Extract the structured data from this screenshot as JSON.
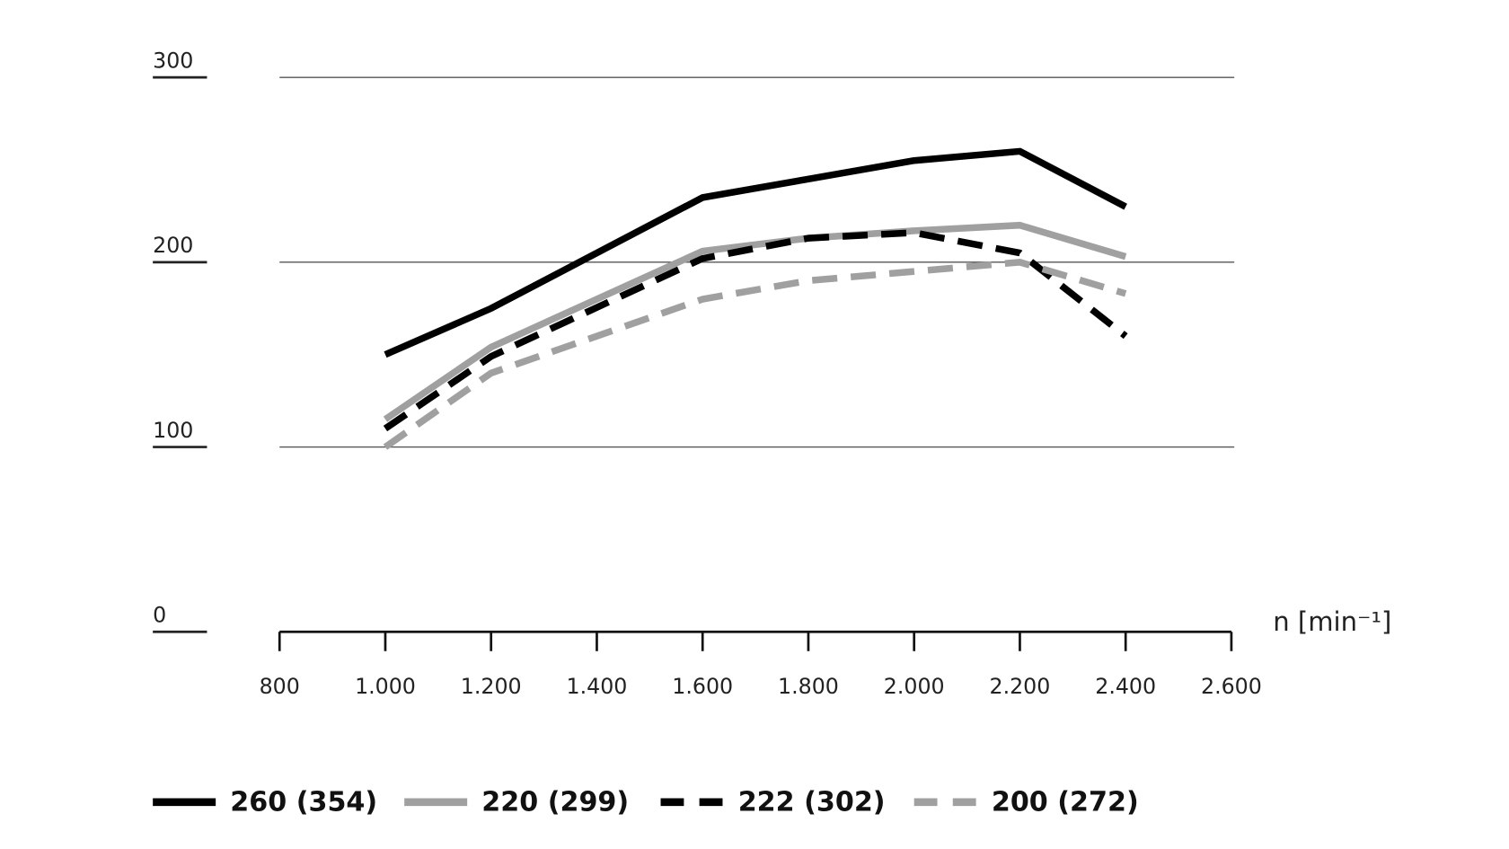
{
  "chart_data": {
    "type": "line",
    "title": "",
    "xlabel": "n [min⁻¹]",
    "ylabel": "",
    "xlim": [
      800,
      2600
    ],
    "ylim": [
      0,
      300
    ],
    "grid": true,
    "legend_position": "bottom",
    "x_tick_labels": [
      "800",
      "1.000",
      "1.200",
      "1.400",
      "1.600",
      "1.800",
      "2.000",
      "2.200",
      "2.400",
      "2.600"
    ],
    "x_ticks": [
      800,
      1000,
      1200,
      1400,
      1600,
      1800,
      2000,
      2200,
      2400,
      2600
    ],
    "y_tick_labels": [
      "0",
      "100",
      "200",
      "300"
    ],
    "y_ticks": [
      0,
      100,
      200,
      300
    ],
    "x": [
      1000,
      1200,
      1600,
      1800,
      2000,
      2200,
      2400
    ],
    "series": [
      {
        "name": "260 (354)",
        "color": "#000000",
        "dashed": false,
        "values": [
          150,
          175,
          235,
          245,
          255,
          260,
          230
        ]
      },
      {
        "name": "220 (299)",
        "color": "#a0a0a0",
        "dashed": false,
        "values": [
          115,
          154,
          206,
          213,
          217,
          220,
          203
        ]
      },
      {
        "name": "222 (302)",
        "color": "#000000",
        "dashed": true,
        "values": [
          110,
          149,
          202,
          213,
          216,
          205,
          160
        ]
      },
      {
        "name": "200 (272)",
        "color": "#a0a0a0",
        "dashed": true,
        "values": [
          100,
          140,
          180,
          190,
          195,
          200,
          183
        ]
      }
    ]
  }
}
